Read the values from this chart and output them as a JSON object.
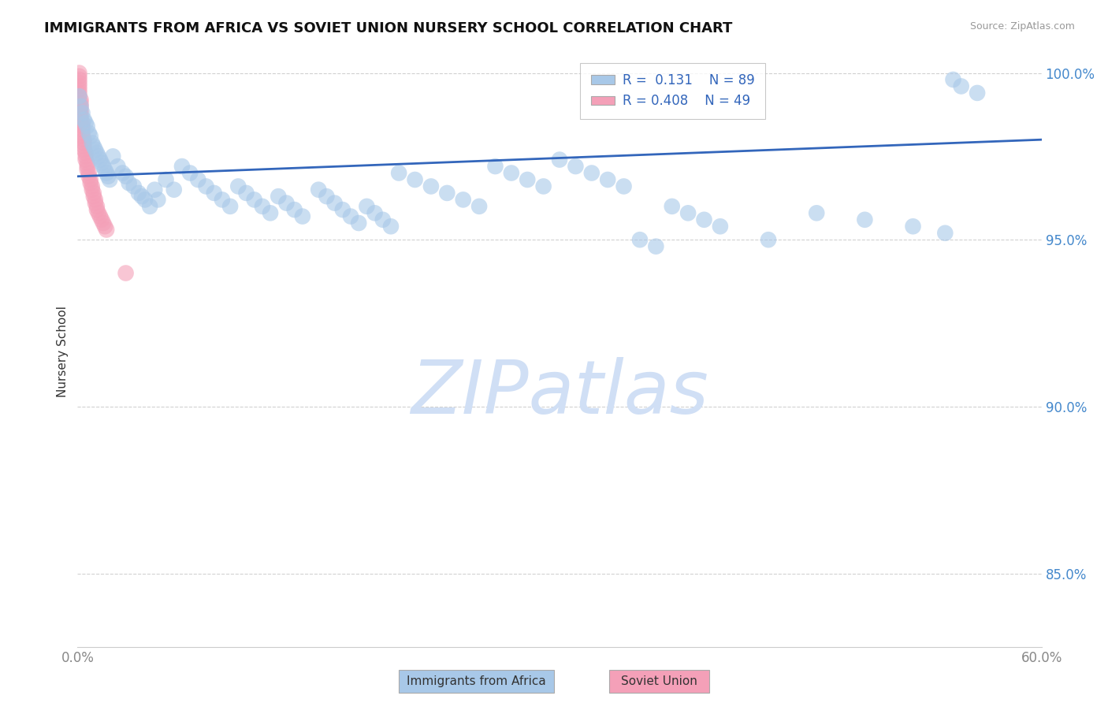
{
  "title": "IMMIGRANTS FROM AFRICA VS SOVIET UNION NURSERY SCHOOL CORRELATION CHART",
  "source": "Source: ZipAtlas.com",
  "ylabel": "Nursery School",
  "xlim": [
    0.0,
    0.6
  ],
  "ylim": [
    0.828,
    1.005
  ],
  "yticks": [
    0.85,
    0.9,
    0.95,
    1.0
  ],
  "ytick_labels": [
    "85.0%",
    "90.0%",
    "95.0%",
    "100.0%"
  ],
  "xticks": [
    0.0,
    0.6
  ],
  "xtick_labels": [
    "0.0%",
    "60.0%"
  ],
  "legend_R1": "0.131",
  "legend_N1": "89",
  "legend_R2": "0.408",
  "legend_N2": "49",
  "legend_label1": "Immigrants from Africa",
  "legend_label2": "Soviet Union",
  "africa_color": "#a8c8e8",
  "soviet_color": "#f4a0b8",
  "line_color": "#3366bb",
  "watermark": "ZIPatlas",
  "watermark_color": "#d0dff5",
  "africa_x": [
    0.001,
    0.002,
    0.003,
    0.004,
    0.005,
    0.006,
    0.007,
    0.008,
    0.009,
    0.01,
    0.011,
    0.012,
    0.013,
    0.014,
    0.015,
    0.016,
    0.017,
    0.018,
    0.019,
    0.02,
    0.022,
    0.025,
    0.028,
    0.03,
    0.032,
    0.035,
    0.038,
    0.04,
    0.042,
    0.045,
    0.048,
    0.05,
    0.055,
    0.06,
    0.065,
    0.07,
    0.075,
    0.08,
    0.085,
    0.09,
    0.095,
    0.1,
    0.105,
    0.11,
    0.115,
    0.12,
    0.125,
    0.13,
    0.135,
    0.14,
    0.15,
    0.155,
    0.16,
    0.165,
    0.17,
    0.175,
    0.18,
    0.185,
    0.19,
    0.195,
    0.2,
    0.21,
    0.22,
    0.23,
    0.24,
    0.25,
    0.26,
    0.27,
    0.28,
    0.29,
    0.3,
    0.31,
    0.32,
    0.33,
    0.34,
    0.35,
    0.36,
    0.37,
    0.38,
    0.39,
    0.4,
    0.43,
    0.46,
    0.49,
    0.52,
    0.54,
    0.545,
    0.55,
    0.56
  ],
  "africa_y": [
    0.993,
    0.99,
    0.988,
    0.986,
    0.985,
    0.984,
    0.982,
    0.981,
    0.979,
    0.978,
    0.977,
    0.976,
    0.975,
    0.974,
    0.973,
    0.972,
    0.971,
    0.97,
    0.969,
    0.968,
    0.975,
    0.972,
    0.97,
    0.969,
    0.967,
    0.966,
    0.964,
    0.963,
    0.962,
    0.96,
    0.965,
    0.962,
    0.968,
    0.965,
    0.972,
    0.97,
    0.968,
    0.966,
    0.964,
    0.962,
    0.96,
    0.966,
    0.964,
    0.962,
    0.96,
    0.958,
    0.963,
    0.961,
    0.959,
    0.957,
    0.965,
    0.963,
    0.961,
    0.959,
    0.957,
    0.955,
    0.96,
    0.958,
    0.956,
    0.954,
    0.97,
    0.968,
    0.966,
    0.964,
    0.962,
    0.96,
    0.972,
    0.97,
    0.968,
    0.966,
    0.974,
    0.972,
    0.97,
    0.968,
    0.966,
    0.95,
    0.948,
    0.96,
    0.958,
    0.956,
    0.954,
    0.95,
    0.958,
    0.956,
    0.954,
    0.952,
    0.998,
    0.996,
    0.994
  ],
  "soviet_x": [
    0.001,
    0.001,
    0.001,
    0.001,
    0.001,
    0.001,
    0.001,
    0.001,
    0.002,
    0.002,
    0.002,
    0.002,
    0.002,
    0.002,
    0.002,
    0.003,
    0.003,
    0.003,
    0.003,
    0.003,
    0.004,
    0.004,
    0.004,
    0.004,
    0.005,
    0.005,
    0.005,
    0.006,
    0.006,
    0.006,
    0.007,
    0.007,
    0.008,
    0.008,
    0.009,
    0.009,
    0.01,
    0.01,
    0.011,
    0.011,
    0.012,
    0.012,
    0.013,
    0.014,
    0.015,
    0.016,
    0.017,
    0.018,
    0.03
  ],
  "soviet_y": [
    1.0,
    0.999,
    0.998,
    0.997,
    0.996,
    0.995,
    0.994,
    0.993,
    0.992,
    0.991,
    0.99,
    0.989,
    0.988,
    0.987,
    0.986,
    0.985,
    0.984,
    0.983,
    0.982,
    0.981,
    0.98,
    0.979,
    0.978,
    0.977,
    0.976,
    0.975,
    0.974,
    0.973,
    0.972,
    0.971,
    0.97,
    0.969,
    0.968,
    0.967,
    0.966,
    0.965,
    0.964,
    0.963,
    0.962,
    0.961,
    0.96,
    0.959,
    0.958,
    0.957,
    0.956,
    0.955,
    0.954,
    0.953,
    0.94
  ],
  "trend_x": [
    0.0,
    0.6
  ],
  "trend_y": [
    0.969,
    0.98
  ]
}
